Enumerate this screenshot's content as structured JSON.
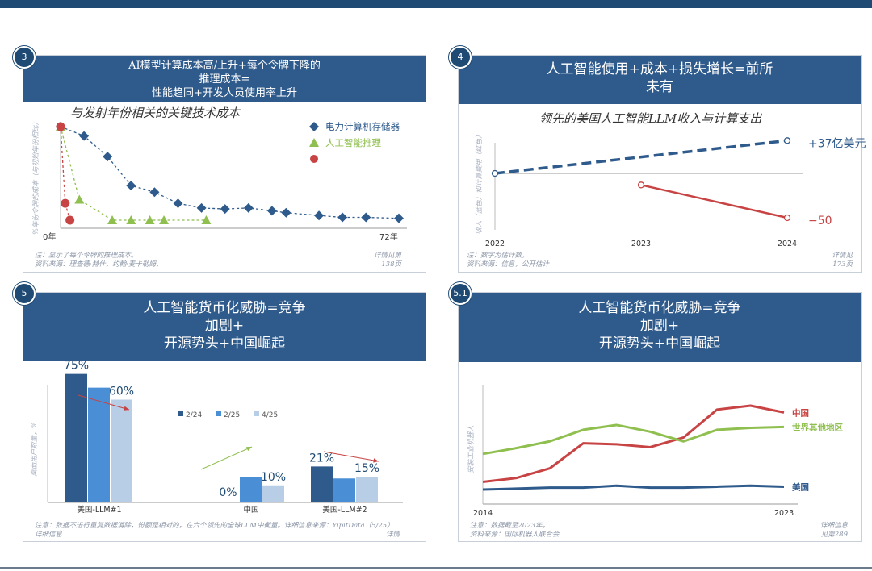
{
  "panels": {
    "p3": {
      "badge": "3",
      "title_lines": [
        "AI模型计算成本高/上升+每个令牌下降的",
        "推理成本=",
        "性能趋同+开发人员使用率上升"
      ],
      "chart_title": "与发射年份相关的关键技术成本",
      "note_lines": [
        "注：显示了每个令牌的推理成本。",
        "资料来源：理查德·赫什，约翰·麦卡勒姆，"
      ],
      "ref_lines": [
        "详情见第",
        "138页"
      ]
    },
    "p4": {
      "badge": "4",
      "title_lines": [
        "人工智能使用+成本+损失增长=前所",
        "未有"
      ],
      "chart_title": "领先的美国人工智能LLM收入与计算支出",
      "note_lines": [
        "注：数字为估计数。",
        "资料来源：信息，公开估计"
      ],
      "ref_lines": [
        "详情见",
        "173页"
      ]
    },
    "p5": {
      "badge": "5",
      "title_lines": [
        "人工智能货币化威胁=竞争",
        "加剧+",
        "开源势头+中国崛起"
      ],
      "note_lines": [
        "注意：数据不进行重复数据消除，份额是相对的，在六个领先的全球LLM中衡量。详细信息来源：YipitData（5/25）",
        "详细信息"
      ],
      "ref_lines": [
        "详情"
      ]
    },
    "p51": {
      "badge": "5.1",
      "title_lines": [
        "人工智能货币化威胁=竞争",
        "加剧+",
        "开源势头+中国崛起"
      ],
      "note_lines": [
        "注意：数据截至2023年。",
        "资料来源：国际机器人联合会"
      ],
      "ref_lines": [
        "详细信息",
        "见第289"
      ]
    }
  },
  "chart_data": [
    {
      "type": "scatter",
      "title": "与发射年份相关的关键技术成本",
      "ylabel": "%年份令牌的成本（与初始年份相比）",
      "x_tick_labels": [
        "0年",
        "72年"
      ],
      "xlim": [
        0,
        72
      ],
      "ylim": [
        0,
        100
      ],
      "series": [
        {
          "name": "电力计算机存储器",
          "color": "#2f5b8c",
          "marker": "diamond",
          "points": [
            [
              0,
              100
            ],
            [
              5,
              90
            ],
            [
              10,
              68
            ],
            [
              15,
              37
            ],
            [
              20,
              30
            ],
            [
              25,
              18
            ],
            [
              30,
              13
            ],
            [
              35,
              12
            ],
            [
              40,
              13
            ],
            [
              45,
              10
            ],
            [
              48,
              8
            ],
            [
              55,
              5
            ],
            [
              60,
              3
            ],
            [
              65,
              3
            ],
            [
              72,
              2
            ]
          ]
        },
        {
          "name": "人工智能推理",
          "color": "#8fbf4e",
          "marker": "triangle",
          "points": [
            [
              0,
              100
            ],
            [
              4,
              22
            ],
            [
              11,
              0
            ],
            [
              15,
              0
            ],
            [
              19,
              0
            ],
            [
              22,
              0
            ],
            [
              31,
              0
            ]
          ]
        },
        {
          "name": "",
          "color": "#c84444",
          "marker": "circle",
          "points": [
            [
              0,
              100
            ],
            [
              1,
              18
            ],
            [
              2,
              0
            ]
          ]
        }
      ]
    },
    {
      "type": "line",
      "title": "领先的美国人工智能LLM收入与计算支出",
      "ylabel": "收入（蓝色）和计算费用（红色）",
      "x": [
        "2022",
        "2023",
        "2024"
      ],
      "series": [
        {
          "name": "收入",
          "color": "#2f5b8c",
          "style": "dashed",
          "points": [
            [
              2022,
              0
            ],
            [
              2024,
              37
            ]
          ],
          "end_label": "+37亿美元"
        },
        {
          "name": "计算支出",
          "color": "#c84444",
          "style": "solid",
          "points": [
            [
              2023,
              -13
            ],
            [
              2024,
              -50
            ]
          ],
          "end_label": "−50"
        }
      ]
    },
    {
      "type": "bar",
      "ylabel": "桌面用户数量，%",
      "categories": [
        "美国-LLM#1",
        "中国",
        "美国-LLM#2"
      ],
      "series": [
        {
          "name": "2/24",
          "color": "#2f5b8c",
          "values": [
            75,
            0,
            21
          ]
        },
        {
          "name": "2/25",
          "color": "#4a8fd6",
          "values": [
            67,
            15,
            14
          ]
        },
        {
          "name": "4/25",
          "color": "#b8cde6",
          "values": [
            60,
            10,
            15
          ]
        }
      ],
      "data_labels": [
        "75%",
        "60%",
        "0%",
        "10%",
        "21%",
        "15%"
      ],
      "ylim": [
        0,
        100
      ]
    },
    {
      "type": "line",
      "ylabel": "安装工业机器人",
      "x_tick_labels": [
        "2014",
        "2023"
      ],
      "x": [
        2014,
        2015,
        2016,
        2017,
        2018,
        2019,
        2020,
        2021,
        2022,
        2023
      ],
      "ylim": [
        0,
        100
      ],
      "series": [
        {
          "name": "中国",
          "color": "#c84444",
          "values": [
            18,
            22,
            32,
            58,
            57,
            54,
            64,
            93,
            97,
            90
          ]
        },
        {
          "name": "世界其他地区",
          "color": "#8fbf4e",
          "values": [
            47,
            53,
            60,
            72,
            77,
            70,
            60,
            72,
            74,
            75
          ]
        },
        {
          "name": "美国",
          "color": "#2f5b8c",
          "values": [
            10,
            11,
            12,
            12,
            14,
            12,
            12,
            13,
            14,
            13
          ]
        }
      ]
    }
  ]
}
